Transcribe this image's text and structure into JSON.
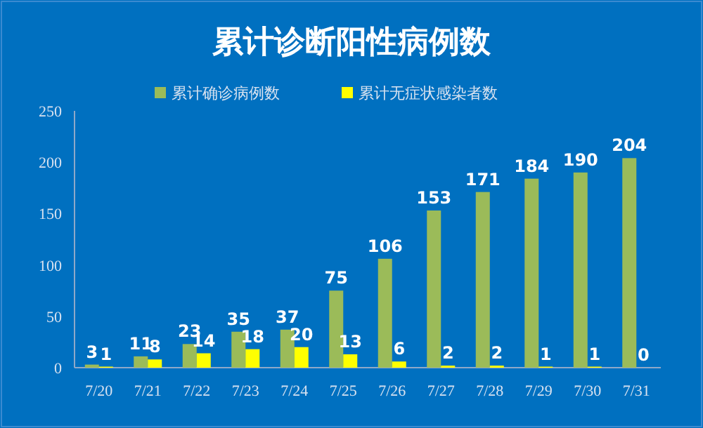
{
  "chart_data": {
    "type": "bar",
    "title": "累计诊断阳性病例数",
    "categories": [
      "7/20",
      "7/21",
      "7/22",
      "7/23",
      "7/24",
      "7/25",
      "7/26",
      "7/27",
      "7/28",
      "7/29",
      "7/30",
      "7/31"
    ],
    "series": [
      {
        "name": "累计确诊病例数",
        "color": "#9bbb59",
        "values": [
          3,
          11,
          23,
          35,
          37,
          75,
          106,
          153,
          171,
          184,
          190,
          204
        ]
      },
      {
        "name": "累计无症状感染者数",
        "color": "#ffff00",
        "values": [
          1,
          8,
          14,
          18,
          20,
          13,
          6,
          2,
          2,
          1,
          1,
          0
        ]
      }
    ],
    "ylim": [
      0,
      250
    ],
    "yticks": [
      0,
      50,
      100,
      150,
      200,
      250
    ],
    "data_labels": true,
    "legend": "top",
    "grid": false
  }
}
